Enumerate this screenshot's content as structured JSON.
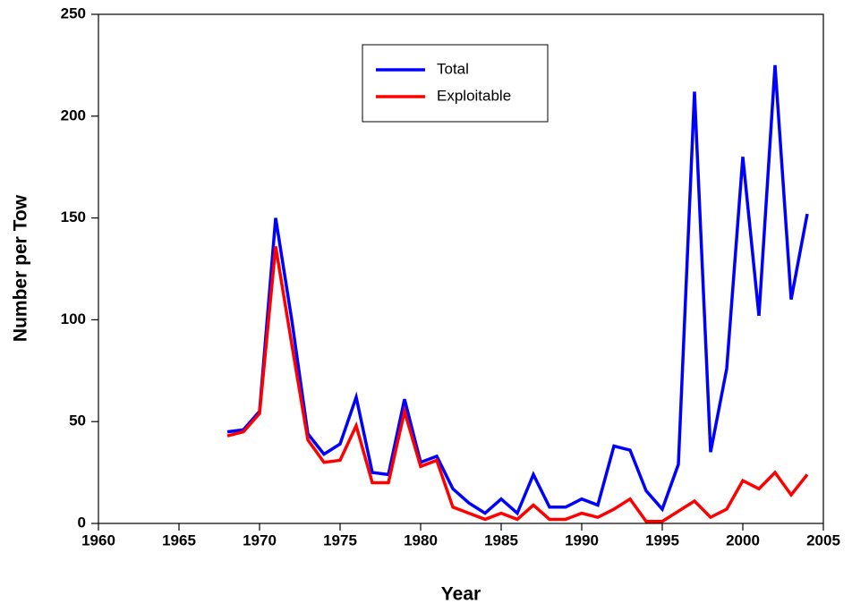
{
  "chart_data": {
    "type": "line",
    "xlabel": "Year",
    "ylabel": "Number per Tow",
    "x": [
      1968,
      1969,
      1970,
      1971,
      1972,
      1973,
      1974,
      1975,
      1976,
      1977,
      1978,
      1979,
      1980,
      1981,
      1982,
      1983,
      1984,
      1985,
      1986,
      1987,
      1988,
      1989,
      1990,
      1991,
      1992,
      1993,
      1994,
      1995,
      1996,
      1997,
      1998,
      1999,
      2000,
      2001,
      2002,
      2003,
      2004
    ],
    "series": [
      {
        "name": "Total",
        "color": "#0000ff",
        "values": [
          45,
          46,
          55,
          150,
          100,
          44,
          34,
          39,
          62,
          25,
          24,
          61,
          30,
          33,
          17,
          10,
          5,
          12,
          5,
          24,
          8,
          8,
          12,
          9,
          38,
          36,
          16,
          7,
          29,
          212,
          35,
          76,
          180,
          102,
          225,
          110,
          152
        ]
      },
      {
        "name": "Exploitable",
        "color": "#ff0000",
        "values": [
          43,
          45,
          54,
          136,
          88,
          41,
          30,
          31,
          48,
          20,
          20,
          55,
          28,
          31,
          8,
          5,
          2,
          5,
          2,
          9,
          2,
          2,
          5,
          3,
          7,
          12,
          1,
          1,
          6,
          11,
          3,
          7,
          21,
          17,
          25,
          14,
          24
        ]
      }
    ],
    "xlim": [
      1960,
      2005
    ],
    "xticks": [
      1960,
      1965,
      1970,
      1975,
      1980,
      1985,
      1990,
      1995,
      2000,
      2005
    ],
    "ylim": [
      0,
      250
    ],
    "yticks": [
      0,
      50,
      100,
      150,
      200,
      250
    ]
  }
}
